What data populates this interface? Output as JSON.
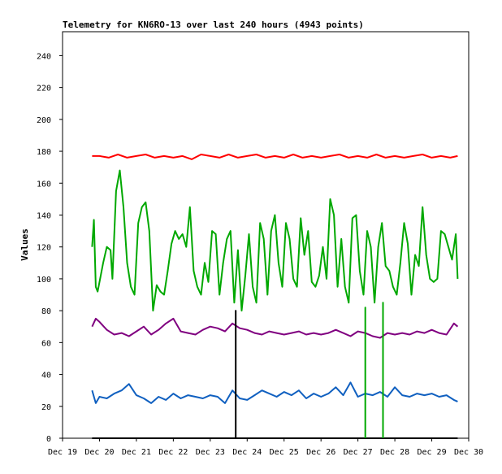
{
  "chart_data": {
    "type": "line",
    "title": "Telemetry for KN6RO-13 over last 240 hours (4943 points)",
    "xlabel": "",
    "ylabel": "Values",
    "ylim": [
      0,
      255
    ],
    "xlim": [
      0,
      11
    ],
    "grid": false,
    "legend": "none",
    "x_tick_labels": [
      "Dec 19",
      "Dec 20",
      "Dec 21",
      "Dec 22",
      "Dec 23",
      "Dec 24",
      "Dec 25",
      "Dec 26",
      "Dec 27",
      "Dec 28",
      "Dec 29",
      "Dec 30"
    ],
    "x_tick_values": [
      0,
      1,
      2,
      3,
      4,
      5,
      6,
      7,
      8,
      9,
      10,
      11
    ],
    "y_ticks": [
      0,
      20,
      40,
      60,
      80,
      100,
      120,
      140,
      160,
      180,
      200,
      220,
      240
    ],
    "series": [
      {
        "color": "#ff0000",
        "x": [
          0.8,
          1.0,
          1.25,
          1.5,
          1.75,
          2.0,
          2.25,
          2.5,
          2.75,
          3.0,
          3.25,
          3.5,
          3.75,
          4.0,
          4.25,
          4.5,
          4.75,
          5.0,
          5.25,
          5.5,
          5.75,
          6.0,
          6.25,
          6.5,
          6.75,
          7.0,
          7.25,
          7.5,
          7.75,
          8.0,
          8.25,
          8.5,
          8.75,
          9.0,
          9.25,
          9.5,
          9.75,
          10.0,
          10.25,
          10.5,
          10.7
        ],
        "y": [
          177,
          177,
          176,
          178,
          176,
          177,
          178,
          176,
          177,
          176,
          177,
          175,
          178,
          177,
          176,
          178,
          176,
          177,
          178,
          176,
          177,
          176,
          178,
          176,
          177,
          176,
          177,
          178,
          176,
          177,
          176,
          178,
          176,
          177,
          176,
          177,
          178,
          176,
          177,
          176,
          177
        ]
      },
      {
        "color": "#00a800",
        "x": [
          0.8,
          0.85,
          0.9,
          0.95,
          1.0,
          1.1,
          1.2,
          1.3,
          1.35,
          1.45,
          1.55,
          1.65,
          1.75,
          1.85,
          1.95,
          2.05,
          2.15,
          2.25,
          2.35,
          2.45,
          2.55,
          2.65,
          2.75,
          2.85,
          2.95,
          3.05,
          3.15,
          3.25,
          3.35,
          3.45,
          3.55,
          3.65,
          3.75,
          3.85,
          3.95,
          4.05,
          4.15,
          4.25,
          4.35,
          4.45,
          4.55,
          4.65,
          4.75,
          4.85,
          4.95,
          5.05,
          5.15,
          5.25,
          5.35,
          5.45,
          5.55,
          5.65,
          5.75,
          5.85,
          5.95,
          6.05,
          6.15,
          6.25,
          6.35,
          6.45,
          6.55,
          6.65,
          6.75,
          6.85,
          6.95,
          7.05,
          7.15,
          7.25,
          7.35,
          7.45,
          7.55,
          7.65,
          7.75,
          7.85,
          7.95,
          8.05,
          8.15,
          8.25,
          8.35,
          8.45,
          8.55,
          8.65,
          8.75,
          8.85,
          8.95,
          9.05,
          9.15,
          9.25,
          9.35,
          9.45,
          9.55,
          9.65,
          9.75,
          9.85,
          9.95,
          10.05,
          10.15,
          10.25,
          10.35,
          10.45,
          10.55,
          10.65,
          10.7
        ],
        "y": [
          120,
          137,
          95,
          92,
          98,
          110,
          120,
          118,
          100,
          155,
          168,
          145,
          110,
          95,
          90,
          135,
          145,
          148,
          130,
          80,
          96,
          92,
          90,
          105,
          122,
          130,
          125,
          128,
          120,
          145,
          105,
          95,
          90,
          110,
          98,
          130,
          128,
          90,
          110,
          125,
          130,
          85,
          118,
          80,
          102,
          128,
          95,
          85,
          135,
          125,
          90,
          130,
          140,
          110,
          95,
          135,
          125,
          100,
          95,
          138,
          115,
          130,
          98,
          95,
          102,
          120,
          100,
          150,
          140,
          95,
          125,
          95,
          85,
          138,
          140,
          105,
          90,
          130,
          120,
          85,
          120,
          135,
          108,
          105,
          95,
          90,
          110,
          135,
          122,
          90,
          115,
          108,
          145,
          115,
          100,
          98,
          100,
          130,
          128,
          120,
          112,
          128,
          100
        ]
      },
      {
        "color": "#800080",
        "x": [
          0.8,
          0.9,
          1.0,
          1.2,
          1.4,
          1.6,
          1.8,
          2.0,
          2.2,
          2.4,
          2.6,
          2.8,
          3.0,
          3.2,
          3.4,
          3.6,
          3.8,
          4.0,
          4.2,
          4.4,
          4.6,
          4.8,
          5.0,
          5.2,
          5.4,
          5.6,
          5.8,
          6.0,
          6.2,
          6.4,
          6.6,
          6.8,
          7.0,
          7.2,
          7.4,
          7.6,
          7.8,
          8.0,
          8.2,
          8.4,
          8.6,
          8.8,
          9.0,
          9.2,
          9.4,
          9.6,
          9.8,
          10.0,
          10.2,
          10.4,
          10.6,
          10.7
        ],
        "y": [
          70,
          75,
          73,
          68,
          65,
          66,
          64,
          67,
          70,
          65,
          68,
          72,
          75,
          67,
          66,
          65,
          68,
          70,
          69,
          67,
          72,
          69,
          68,
          66,
          65,
          67,
          66,
          65,
          66,
          67,
          65,
          66,
          65,
          66,
          68,
          66,
          64,
          67,
          66,
          64,
          63,
          66,
          65,
          66,
          65,
          67,
          66,
          68,
          66,
          65,
          72,
          70
        ]
      },
      {
        "color": "#1060c0",
        "x": [
          0.8,
          0.9,
          1.0,
          1.2,
          1.4,
          1.6,
          1.8,
          2.0,
          2.2,
          2.4,
          2.6,
          2.8,
          3.0,
          3.2,
          3.4,
          3.6,
          3.8,
          4.0,
          4.2,
          4.4,
          4.6,
          4.8,
          5.0,
          5.2,
          5.4,
          5.6,
          5.8,
          6.0,
          6.2,
          6.4,
          6.6,
          6.8,
          7.0,
          7.2,
          7.4,
          7.6,
          7.8,
          8.0,
          8.2,
          8.4,
          8.6,
          8.8,
          9.0,
          9.2,
          9.4,
          9.6,
          9.8,
          10.0,
          10.2,
          10.4,
          10.6,
          10.7
        ],
        "y": [
          30,
          22,
          26,
          25,
          28,
          30,
          34,
          27,
          25,
          22,
          26,
          24,
          28,
          25,
          27,
          26,
          25,
          27,
          26,
          22,
          30,
          25,
          24,
          27,
          30,
          28,
          26,
          29,
          27,
          30,
          25,
          28,
          26,
          28,
          32,
          27,
          35,
          26,
          28,
          27,
          29,
          26,
          32,
          27,
          26,
          28,
          27,
          28,
          26,
          27,
          24,
          23
        ]
      },
      {
        "color": "#000000",
        "x": [
          0.8,
          4.69,
          4.69,
          4.69,
          4.7,
          10.7
        ],
        "y": [
          0,
          0,
          80,
          0,
          0,
          0
        ]
      },
      {
        "color": "#00a800",
        "x": [
          8.2,
          8.2,
          8.2
        ],
        "y": [
          0,
          82,
          0
        ]
      },
      {
        "color": "#00a800",
        "x": [
          8.68,
          8.68,
          8.68
        ],
        "y": [
          0,
          85,
          0
        ]
      }
    ]
  }
}
